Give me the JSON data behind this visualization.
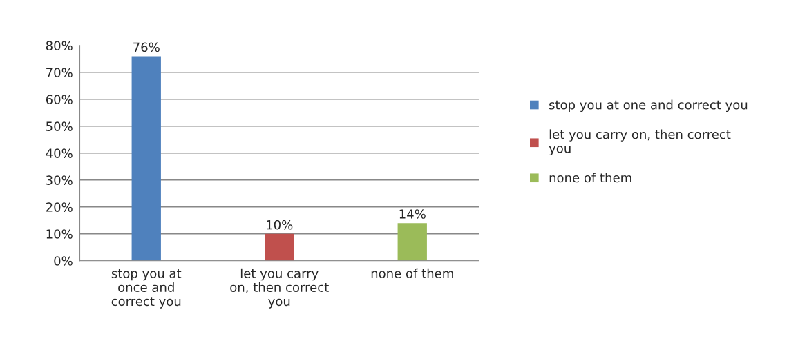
{
  "chart_data": {
    "type": "bar",
    "categories": [
      "stop you at\nonce and\ncorrect you",
      "let you carry\non, then correct\nyou",
      "none of them"
    ],
    "series": [
      {
        "name": "stop you at one and correct you",
        "color": "#4f81bd",
        "values": [
          76,
          null,
          null
        ],
        "value_labels": [
          "76%",
          null,
          null
        ]
      },
      {
        "name": "let you carry on, then correct\nyou",
        "color": "#c0504d",
        "values": [
          null,
          10,
          null
        ],
        "value_labels": [
          null,
          "10%",
          null
        ]
      },
      {
        "name": "none of them",
        "color": "#9bbb59",
        "values": [
          null,
          null,
          14
        ],
        "value_labels": [
          null,
          null,
          "14%"
        ]
      }
    ],
    "ylim": [
      0,
      80
    ],
    "yticks": [
      {
        "value": 0,
        "label": "0%"
      },
      {
        "value": 10,
        "label": "10%"
      },
      {
        "value": 20,
        "label": "20%"
      },
      {
        "value": 30,
        "label": "30%"
      },
      {
        "value": 40,
        "label": "40%"
      },
      {
        "value": 50,
        "label": "50%"
      },
      {
        "value": 60,
        "label": "60%"
      },
      {
        "value": 70,
        "label": "70%"
      },
      {
        "value": 80,
        "label": "80%"
      }
    ],
    "grid": "y",
    "legend": "right"
  }
}
